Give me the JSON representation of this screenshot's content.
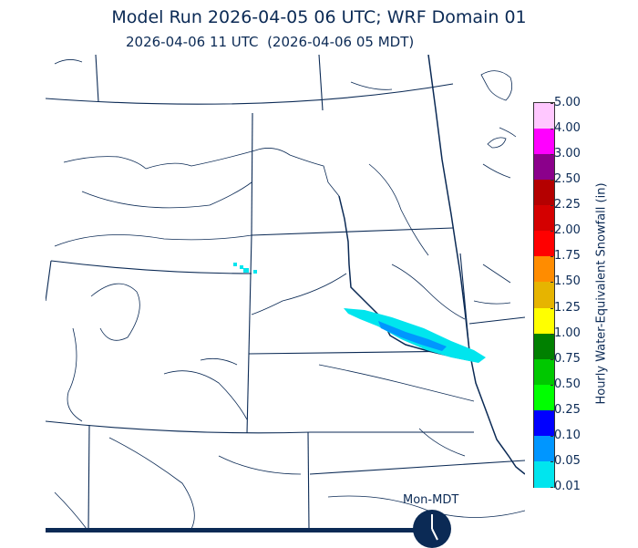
{
  "header": {
    "title": "Model Run 2026-04-05 06 UTC; WRF Domain 01",
    "subtitle": "2026-04-06 11 UTC  (2026-04-06 05 MDT)"
  },
  "colorbar": {
    "label": "Hourly Water-Equivalent Snowfall (in)",
    "ticks": [
      "5.00",
      "4.00",
      "3.00",
      "2.50",
      "2.25",
      "2.00",
      "1.75",
      "1.50",
      "1.25",
      "1.00",
      "0.75",
      "0.50",
      "0.25",
      "0.10",
      "0.05",
      "0.01"
    ],
    "colors_top_to_bottom": [
      "#ffc8ff",
      "#ff00ff",
      "#8b008b",
      "#b40000",
      "#d40000",
      "#ff0000",
      "#ff8c00",
      "#e6b400",
      "#ffff00",
      "#008000",
      "#00c800",
      "#00ff00",
      "#0000ff",
      "#0096ff",
      "#00e5ee"
    ]
  },
  "map_colors": {
    "boundary": "#0b2a55",
    "band_light": "#00e5ee",
    "band_dark": "#0096ff"
  },
  "timeline": {
    "label": "Mon-MDT"
  }
}
